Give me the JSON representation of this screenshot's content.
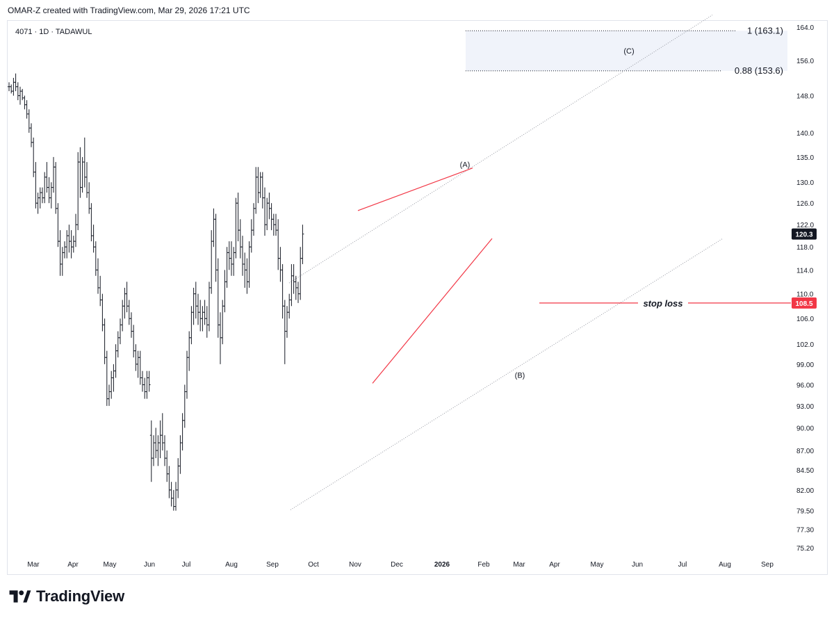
{
  "header": {
    "text": "OMAR-Z created with TradingView.com, Mar 29, 2026 17:21 UTC"
  },
  "footer": {
    "brand": "TradingView",
    "logo_icon": "tradingview-logo-icon"
  },
  "chart_data": {
    "type": "bar",
    "symbol_label": "4071 · 1D · TADAWUL",
    "price_scale": "log",
    "x_ticks": [
      "Mar",
      "Apr",
      "May",
      "Jun",
      "Jul",
      "Aug",
      "Sep",
      "Oct",
      "Nov",
      "Dec",
      "2026",
      "Feb",
      "Mar",
      "Apr",
      "May",
      "Jun",
      "Jul",
      "Aug",
      "Sep"
    ],
    "y_ticks": [
      75.2,
      77.3,
      79.5,
      82.0,
      84.5,
      87.0,
      90.0,
      93.0,
      96.0,
      99.0,
      102.0,
      106.0,
      110.0,
      114.0,
      118.0,
      122.0,
      126.0,
      130.0,
      135.0,
      140.0,
      148.0,
      156.0,
      164.0
    ],
    "y_tick_labels": [
      "75.20",
      "77.30",
      "79.50",
      "82.00",
      "84.50",
      "87.00",
      "90.00",
      "93.00",
      "96.00",
      "99.00",
      "102.0",
      "106.0",
      "110.0",
      "114.0",
      "118.0",
      "122.0",
      "126.0",
      "130.0",
      "135.0",
      "140.0",
      "148.0",
      "156.0",
      "164.0"
    ],
    "ylim": [
      74.0,
      168.0
    ],
    "last_price": {
      "value": 120.3,
      "label": "120.3"
    },
    "stop_loss": {
      "value": 108.5,
      "label": "108.5",
      "text": "stop loss"
    },
    "target_zone": {
      "upper": {
        "value": 163.1,
        "label": "1 (163.1)"
      },
      "lower": {
        "value": 153.6,
        "label": "0.88 (153.6)"
      },
      "wave_label": "(C)"
    },
    "wave_labels": [
      {
        "text": "(A)",
        "price": 133.5
      },
      {
        "text": "(B)",
        "price": 97.4
      }
    ],
    "colors": {
      "bars": "#131722",
      "red": "#f23645",
      "channel": "#9598a1",
      "zone": "#f0f3fa",
      "stop_badge": "#f23645",
      "price_badge": "#131722"
    },
    "ohlc_daily": [
      [
        150,
        151,
        149,
        150
      ],
      [
        150,
        150.5,
        148.5,
        149
      ],
      [
        149,
        152,
        148,
        151
      ],
      [
        151,
        153,
        149,
        150
      ],
      [
        150,
        151,
        147,
        148
      ],
      [
        148,
        150,
        146,
        149
      ],
      [
        149,
        149.5,
        147,
        147.5
      ],
      [
        147.5,
        148,
        145,
        146
      ],
      [
        146,
        147,
        143,
        144
      ],
      [
        144,
        145,
        140,
        141
      ],
      [
        141,
        142,
        137,
        138
      ],
      [
        138,
        139,
        131,
        132
      ],
      [
        132,
        134,
        125,
        126
      ],
      [
        126,
        128,
        124,
        127
      ],
      [
        127,
        129,
        125,
        128
      ],
      [
        128,
        129,
        126,
        127
      ],
      [
        127,
        132,
        126,
        131
      ],
      [
        131,
        134,
        128,
        129
      ],
      [
        129,
        131,
        126,
        127
      ],
      [
        127,
        130,
        125,
        129
      ],
      [
        129,
        135,
        128,
        133
      ],
      [
        133,
        134,
        124,
        125
      ],
      [
        125,
        126,
        118,
        119
      ],
      [
        119,
        121,
        113,
        115
      ],
      [
        115,
        118,
        113,
        117
      ],
      [
        117,
        119,
        116,
        118
      ],
      [
        118,
        121,
        116,
        120
      ],
      [
        120,
        122,
        117,
        119
      ],
      [
        119,
        121,
        116,
        118
      ],
      [
        118,
        120,
        117,
        119
      ],
      [
        119,
        124,
        118,
        122
      ],
      [
        122,
        136,
        121,
        134
      ],
      [
        134,
        137,
        127,
        129
      ],
      [
        129,
        135,
        128,
        134
      ],
      [
        134,
        139,
        129,
        131
      ],
      [
        131,
        134,
        127,
        128
      ],
      [
        128,
        130,
        124,
        125
      ],
      [
        125,
        126,
        119,
        120
      ],
      [
        120,
        122,
        117,
        118
      ],
      [
        118,
        119,
        113,
        114
      ],
      [
        114,
        116,
        110,
        111
      ],
      [
        111,
        113,
        108,
        109
      ],
      [
        109,
        110,
        104,
        105
      ],
      [
        105,
        106,
        99,
        100
      ],
      [
        100,
        101,
        93,
        94
      ],
      [
        94,
        96,
        93,
        95
      ],
      [
        95,
        98,
        94,
        97
      ],
      [
        97,
        99,
        95,
        98
      ],
      [
        98,
        102,
        97,
        101
      ],
      [
        101,
        104,
        100,
        103
      ],
      [
        103,
        106,
        102,
        105
      ],
      [
        105,
        109,
        104,
        108
      ],
      [
        108,
        111,
        106,
        110
      ],
      [
        110,
        112,
        107,
        108
      ],
      [
        108,
        109,
        105,
        106
      ],
      [
        106,
        107,
        103,
        104
      ],
      [
        104,
        105,
        100,
        101
      ],
      [
        101,
        102,
        98,
        99
      ],
      [
        99,
        101,
        97,
        100
      ],
      [
        100,
        101,
        96,
        97
      ],
      [
        97,
        98,
        95,
        96
      ],
      [
        96,
        97,
        94,
        95
      ],
      [
        95,
        98,
        94,
        97
      ],
      [
        97,
        98,
        95,
        96
      ],
      [
        89,
        91,
        83,
        86
      ],
      [
        86,
        89,
        85,
        88
      ],
      [
        88,
        90,
        86,
        87
      ],
      [
        87,
        89,
        85,
        88
      ],
      [
        88,
        91,
        86,
        89
      ],
      [
        89,
        92,
        87,
        88
      ],
      [
        88,
        89,
        85,
        86
      ],
      [
        86,
        87,
        83,
        84
      ],
      [
        84,
        85,
        81,
        82
      ],
      [
        82,
        83,
        80,
        81
      ],
      [
        81,
        82,
        79.5,
        80
      ],
      [
        80,
        83,
        79.5,
        82
      ],
      [
        82,
        86,
        81,
        85
      ],
      [
        85,
        89,
        84,
        88
      ],
      [
        88,
        92,
        87,
        91
      ],
      [
        91,
        96,
        90,
        95
      ],
      [
        95,
        101,
        94,
        100
      ],
      [
        100,
        104,
        98,
        103
      ],
      [
        103,
        108,
        102,
        107
      ],
      [
        107,
        111,
        105,
        110
      ],
      [
        110,
        112,
        106,
        108
      ],
      [
        108,
        110,
        105,
        107
      ],
      [
        107,
        109,
        104,
        106
      ],
      [
        106,
        108,
        104,
        107
      ],
      [
        107,
        109,
        105,
        106
      ],
      [
        106,
        108,
        103,
        105
      ],
      [
        105,
        112,
        104,
        111
      ],
      [
        111,
        121,
        110,
        119
      ],
      [
        119,
        125,
        118,
        123
      ],
      [
        123,
        124,
        112,
        114
      ],
      [
        114,
        116,
        103,
        105
      ],
      [
        105,
        107,
        99,
        103
      ],
      [
        103,
        109,
        102,
        108
      ],
      [
        108,
        114,
        107,
        112
      ],
      [
        112,
        118,
        111,
        117
      ],
      [
        117,
        119,
        114,
        116
      ],
      [
        116,
        119,
        113,
        115
      ],
      [
        115,
        118,
        113,
        117
      ],
      [
        117,
        127,
        116,
        126
      ],
      [
        126,
        128,
        119,
        121
      ],
      [
        121,
        123,
        116,
        118
      ],
      [
        118,
        120,
        113,
        115
      ],
      [
        115,
        117,
        111,
        114
      ],
      [
        114,
        116,
        110,
        112
      ],
      [
        112,
        119,
        111,
        118
      ],
      [
        118,
        123,
        117,
        121
      ],
      [
        121,
        126,
        120,
        125
      ],
      [
        125,
        133,
        124,
        131
      ],
      [
        131,
        133,
        126,
        128
      ],
      [
        128,
        132,
        127,
        131
      ],
      [
        131,
        132,
        125,
        127
      ],
      [
        127,
        129,
        120,
        122
      ],
      [
        122,
        127,
        121,
        126
      ],
      [
        126,
        128,
        123,
        125
      ],
      [
        125,
        126,
        121,
        123
      ],
      [
        123,
        124,
        120,
        122
      ],
      [
        122,
        124,
        120,
        121
      ],
      [
        121,
        123,
        114,
        116
      ],
      [
        116,
        118,
        112,
        114
      ],
      [
        114,
        115,
        106,
        108
      ],
      [
        108,
        109,
        99,
        104
      ],
      [
        104,
        108,
        103,
        107
      ],
      [
        107,
        110,
        106,
        109
      ],
      [
        109,
        115,
        108,
        113
      ],
      [
        113,
        115,
        110,
        112
      ],
      [
        112,
        113,
        109,
        111
      ],
      [
        111,
        112,
        108.5,
        110
      ],
      [
        110,
        118,
        109,
        116
      ],
      [
        116,
        122,
        115,
        120.3
      ]
    ]
  }
}
